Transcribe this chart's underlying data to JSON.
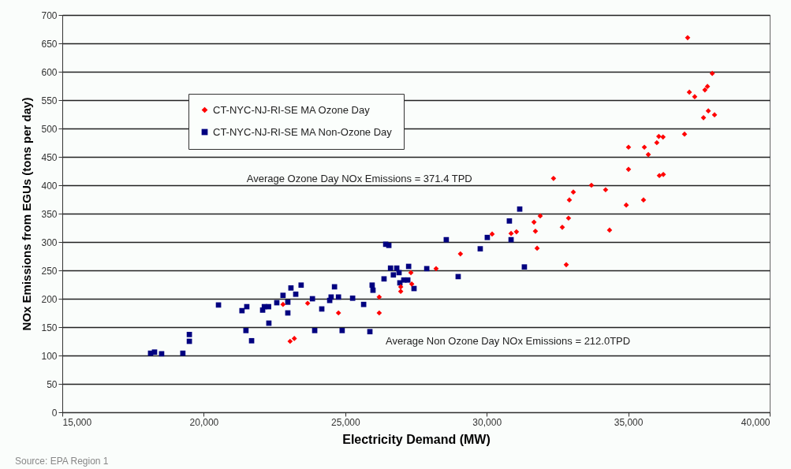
{
  "chart_data": {
    "type": "scatter",
    "xlabel": "Electricity Demand (MW)",
    "ylabel": "NOx Emissions from EGUs (tons per day)",
    "xlim": [
      15000,
      40000
    ],
    "xticks": [
      {
        "value": 15000,
        "label": "15,000"
      },
      {
        "value": 20000,
        "label": "20,000"
      },
      {
        "value": 25000,
        "label": "25,000"
      },
      {
        "value": 30000,
        "label": "30,000"
      },
      {
        "value": 35000,
        "label": "35,000"
      },
      {
        "value": 40000,
        "label": "40,000"
      }
    ],
    "ylim": [
      0,
      700
    ],
    "yticks": [
      0,
      50,
      100,
      150,
      200,
      250,
      300,
      350,
      400,
      450,
      500,
      550,
      600,
      650,
      700
    ],
    "grid": "y",
    "legend": "top left",
    "annotations": [
      "Average Ozone Day NOx Emissions = 371.4 TPD",
      "Average Non Ozone Day NOx Emissions = 212.0TPD",
      "Source: EPA Region 1"
    ],
    "series": [
      {
        "name": "CT-NYC-NJ-RI-SE MA Ozone Day",
        "color": "#ff0000",
        "marker": "diamond",
        "x": [
          26200,
          26200,
          27320,
          26960,
          26960,
          27350,
          28210,
          29070,
          30190,
          30860,
          31050,
          31670,
          31890,
          31720,
          31780,
          32670,
          35010,
          36100,
          36240,
          33700,
          34200,
          33060,
          32920,
          34930,
          35540,
          32890,
          34340,
          32810,
          32360,
          37100,
          37970,
          37160,
          37350,
          37710,
          37800,
          37830,
          38050,
          37660,
          36990,
          36080,
          36230,
          36010,
          35010,
          35570,
          35710,
          22800,
          23670,
          24760,
          23050,
          23200
        ],
        "values": [
          203,
          175,
          246,
          221,
          213,
          226,
          253,
          279,
          314,
          315,
          318,
          335,
          346,
          319,
          289,
          326,
          428,
          417,
          419,
          400,
          392,
          388,
          374,
          365,
          374,
          342,
          321,
          260,
          412,
          660,
          597,
          564,
          556,
          568,
          574,
          531,
          524,
          519,
          490,
          486,
          485,
          475,
          467,
          467,
          454,
          190,
          192,
          175,
          125,
          130
        ]
      },
      {
        "name": "CT-NYC-NJ-RI-SE MA Non-Ozone Day",
        "color": "#000080",
        "marker": "square",
        "x": [
          18120,
          18260,
          18510,
          19260,
          19490,
          19490,
          20520,
          21350,
          21520,
          21490,
          21690,
          22080,
          22140,
          22290,
          22300,
          22580,
          22800,
          22970,
          22970,
          23080,
          23250,
          23440,
          23840,
          23920,
          24170,
          24450,
          24500,
          24760,
          24620,
          24890,
          25260,
          25650,
          25870,
          25950,
          25980,
          26370,
          26430,
          26540,
          26600,
          26820,
          26700,
          26900,
          27070,
          27210,
          26930,
          27240,
          27430,
          27880,
          28570,
          28990,
          29770,
          30020,
          30800,
          30860,
          31165,
          31330
        ],
        "values": [
          104,
          106,
          103,
          104,
          137,
          125,
          189,
          179,
          186,
          144,
          126,
          180,
          186,
          186,
          157,
          193,
          206,
          194,
          175,
          219,
          208,
          224,
          200,
          144,
          182,
          197,
          203,
          203,
          221,
          144,
          201,
          190,
          142,
          224,
          215,
          235,
          296,
          294,
          254,
          254,
          242,
          246,
          233,
          233,
          228,
          257,
          218,
          253,
          304,
          239,
          288,
          308,
          337,
          304,
          358,
          256
        ]
      }
    ]
  }
}
